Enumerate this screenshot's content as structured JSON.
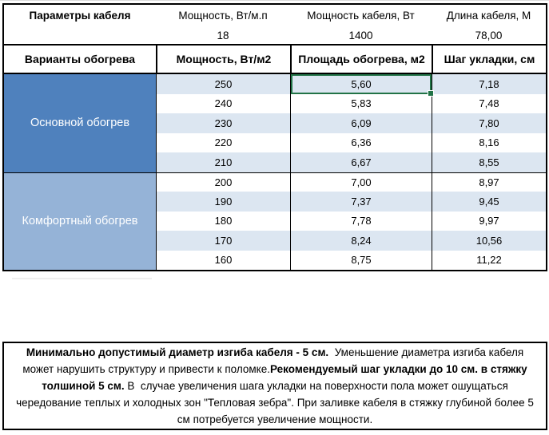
{
  "colors": {
    "border": "#000000",
    "section_primary_blue": "#4f81bd",
    "section_comfort_blue": "#95b3d7",
    "row_stripe_blue": "#dce6f1",
    "row_plain": "#ffffff",
    "selection_green": "#217346",
    "text_on_blue": "#ffffff"
  },
  "params": {
    "labels": [
      "Параметры кабеля",
      "Мощность, Вт/м.п",
      "Мощность кабеля, Вт",
      "Длина кабеля, М"
    ],
    "values": [
      "",
      "18",
      "1400",
      "78,00"
    ]
  },
  "table": {
    "headers": [
      "Варианты обогрева",
      "Мощность, Вт/м2",
      "Площадь обогрева, м2",
      "Шаг укладки, см"
    ],
    "sections": [
      {
        "label": "Основной обогрев",
        "rows": [
          [
            "250",
            "5,60",
            "7,18"
          ],
          [
            "240",
            "5,83",
            "7,48"
          ],
          [
            "230",
            "6,09",
            "7,80"
          ],
          [
            "220",
            "6,36",
            "8,16"
          ],
          [
            "210",
            "6,67",
            "8,55"
          ]
        ]
      },
      {
        "label": "Комфортный обогрев",
        "rows": [
          [
            "200",
            "7,00",
            "8,97"
          ],
          [
            "190",
            "7,37",
            "9,45"
          ],
          [
            "180",
            "7,78",
            "9,97"
          ],
          [
            "170",
            "8,24",
            "10,56"
          ],
          [
            "160",
            "8,75",
            "11,22"
          ]
        ]
      }
    ],
    "selected_cell": {
      "section": 0,
      "row": 0,
      "col": 1,
      "value": "5,60"
    }
  },
  "note": {
    "bold1": "Минимально допустимый диаметр изгиба кабеля - 5 см.",
    "text1": "  Уменьшение диаметра изгиба кабеля может нарушить структуру и привести к поломке.",
    "bold2": "Рекомендуемый шаг укладки до 10 см. в стяжку толшиной 5 см.",
    "text2": " В  случае увеличения шага укладки на поверхности пола может ошущаться чередование теплых и холодных зон \"Тепловая зебра\". При заливке кабеля в стяжку глубиной более 5 см потребуется увеличение мощности."
  }
}
